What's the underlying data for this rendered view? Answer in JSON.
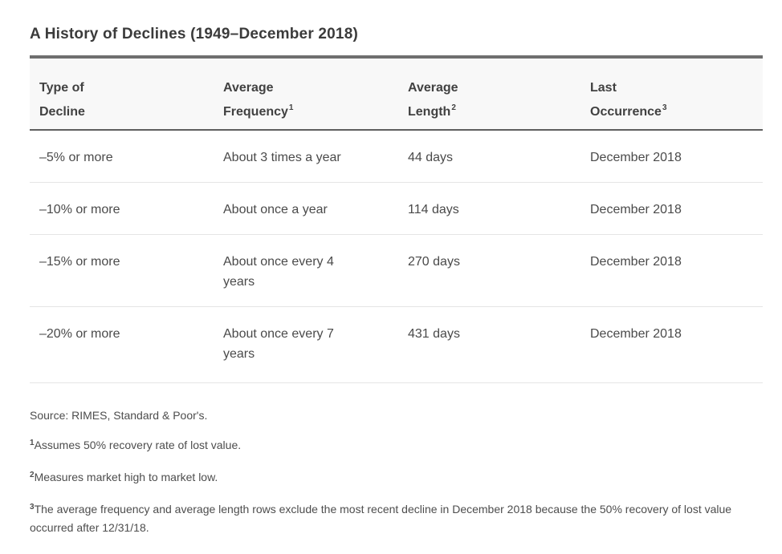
{
  "title": "A History of Declines (1949–December 2018)",
  "table": {
    "headers": [
      {
        "line1": "Type of",
        "line2": "Decline",
        "sup": ""
      },
      {
        "line1": "Average",
        "line2": "Frequency",
        "sup": "1"
      },
      {
        "line1": "Average",
        "line2": "Length",
        "sup": "2"
      },
      {
        "line1": "Last",
        "line2": "Occurrence",
        "sup": "3"
      }
    ],
    "rows": [
      {
        "type_of_decline": "–5% or more",
        "average_frequency": "About 3 times a year",
        "average_length": "44 days",
        "last_occurrence": "December 2018"
      },
      {
        "type_of_decline": "–10% or more",
        "average_frequency": "About once a year",
        "average_length": "114 days",
        "last_occurrence": "December 2018"
      },
      {
        "type_of_decline": "–15% or more",
        "average_frequency": "About once every 4 years",
        "average_length": "270 days",
        "last_occurrence": "December 2018"
      },
      {
        "type_of_decline": "–20% or more",
        "average_frequency": "About once every 7 years",
        "average_length": "431 days",
        "last_occurrence": "December 2018"
      }
    ]
  },
  "footnotes": {
    "source": "Source: RIMES, Standard & Poor's.",
    "notes": [
      {
        "sup": "1",
        "text": "Assumes 50% recovery rate of lost value."
      },
      {
        "sup": "2",
        "text": "Measures market high to market low."
      },
      {
        "sup": "3",
        "text": "The average frequency and average length rows exclude the most recent decline in December 2018 because the 50% recovery of lost value occurred after 12/31/18."
      }
    ]
  },
  "colors": {
    "thick_bar": "#6f6f6f",
    "header_rule": "#5e5e5e",
    "row_rule": "#e5e5e5",
    "header_band_bg": "#f8f8f8",
    "title_text": "#3b3b3b",
    "body_text": "#4a4a4a"
  }
}
